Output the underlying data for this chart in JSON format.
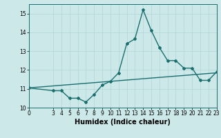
{
  "xlabel": "Humidex (Indice chaleur)",
  "ylabel": "",
  "background_color": "#cce8e8",
  "line_color": "#1a6e6e",
  "x_data": [
    0,
    3,
    4,
    5,
    6,
    7,
    8,
    9,
    10,
    11,
    12,
    13,
    14,
    15,
    16,
    17,
    18,
    19,
    20,
    21,
    22,
    23
  ],
  "y_data": [
    11.05,
    10.9,
    10.9,
    10.5,
    10.5,
    10.3,
    10.7,
    11.2,
    11.4,
    11.85,
    13.4,
    13.65,
    15.2,
    14.1,
    13.2,
    12.5,
    12.5,
    12.1,
    12.1,
    11.45,
    11.45,
    11.9
  ],
  "trend_x": [
    0,
    23
  ],
  "trend_y": [
    11.05,
    11.85
  ],
  "ylim": [
    10,
    15.5
  ],
  "xlim": [
    0,
    23
  ],
  "xticks": [
    0,
    3,
    4,
    5,
    6,
    7,
    8,
    9,
    10,
    11,
    12,
    13,
    14,
    15,
    16,
    17,
    18,
    19,
    20,
    21,
    22,
    23
  ],
  "yticks": [
    10,
    11,
    12,
    13,
    14,
    15
  ],
  "grid_color": "#b0d4d4",
  "marker": "D",
  "marker_size": 2.0,
  "line_width": 1.0,
  "tick_fontsize": 5.5,
  "label_fontsize": 7.0
}
